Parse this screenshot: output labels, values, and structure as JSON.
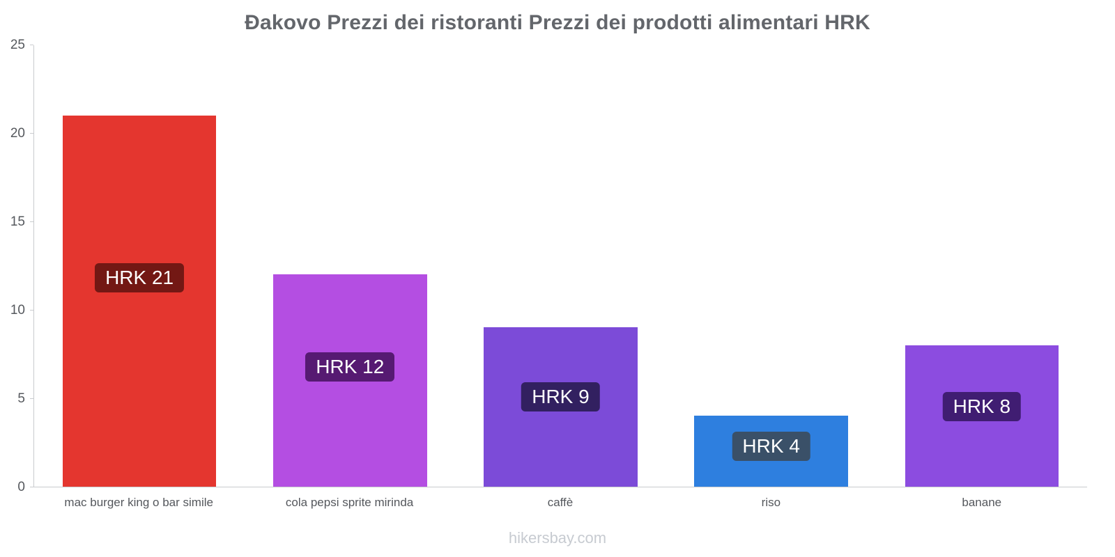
{
  "footer": {
    "text": "hikersbay.com"
  },
  "chart_data": {
    "type": "bar",
    "title": "Đakovo Prezzi dei ristoranti Prezzi dei prodotti alimentari HRK",
    "currency": "HRK",
    "categories": [
      "mac burger king o bar simile",
      "cola pepsi sprite mirinda",
      "caffè",
      "riso",
      "banane"
    ],
    "values": [
      21,
      12,
      9,
      4,
      8
    ],
    "value_labels": [
      "HRK 21",
      "HRK 12",
      "HRK 9",
      "HRK 4",
      "HRK 8"
    ],
    "bar_colors": [
      "#e4362f",
      "#b44ee2",
      "#7c4bd8",
      "#2e7fdf",
      "#8c4ce0"
    ],
    "label_bg_colors": [
      "#731814",
      "#561a72",
      "#322060",
      "#3a5068",
      "#401d72"
    ],
    "xlabel": "",
    "ylabel": "",
    "ylim": [
      0,
      25
    ],
    "yticks": [
      0,
      5,
      10,
      15,
      20,
      25
    ],
    "grid": false,
    "legend": false,
    "watermark": "hikersbay.com"
  }
}
